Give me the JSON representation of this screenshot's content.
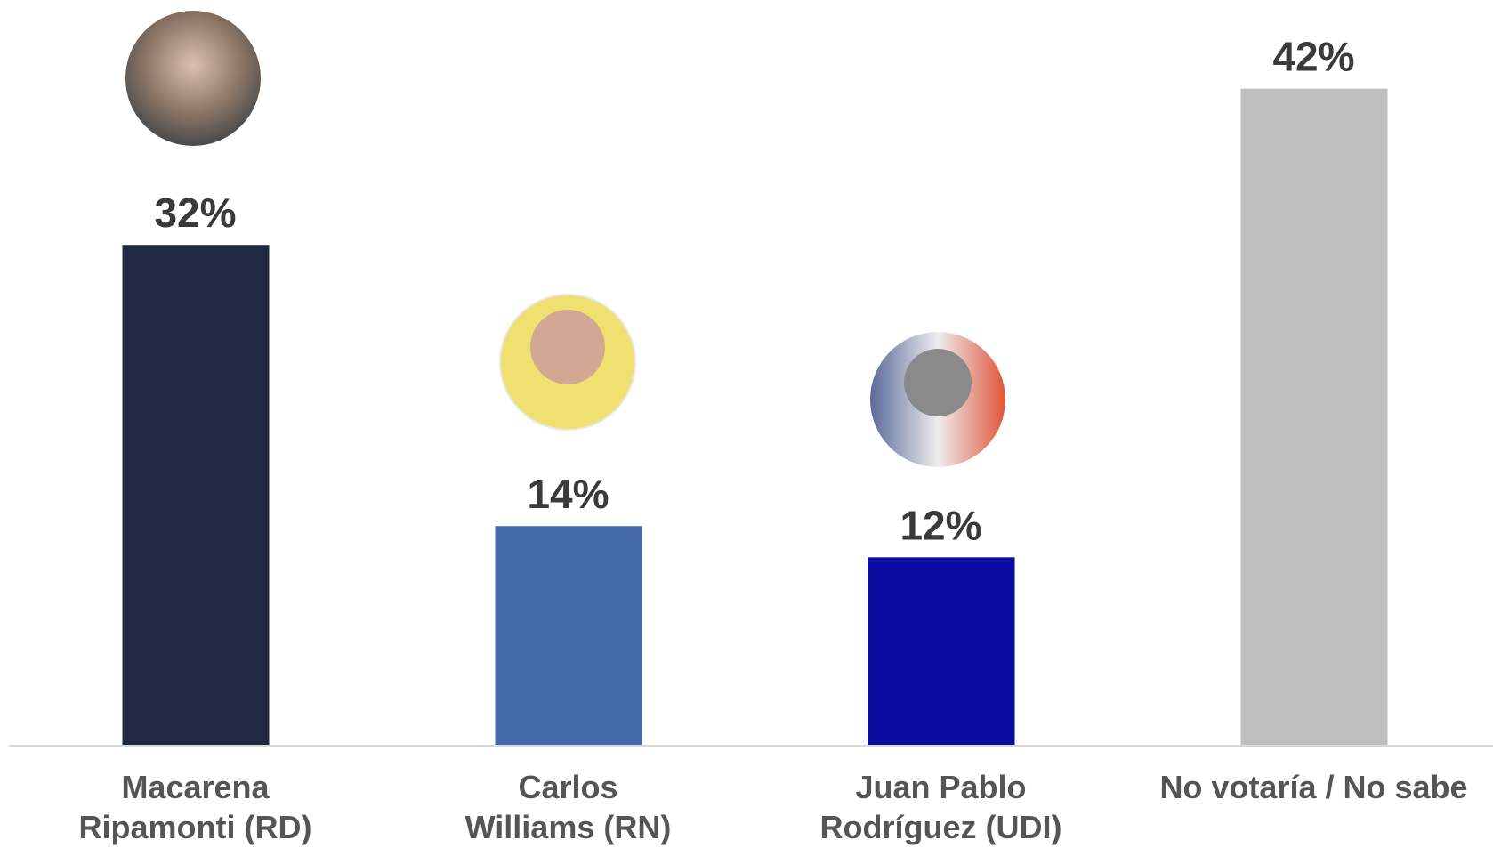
{
  "chart_data": {
    "type": "bar",
    "categories": [
      "Macarena\nRipamonti (RD)",
      "Carlos\nWilliams (RN)",
      "Juan Pablo\nRodríguez (UDI)",
      "No votaría / No sabe"
    ],
    "values": [
      32,
      14,
      12,
      42
    ],
    "value_labels": [
      "32%",
      "14%",
      "12%",
      "42%"
    ],
    "colors": [
      "#222a42",
      "#456baa",
      "#0a0d9e",
      "#bfbfbf"
    ],
    "ylim": [
      0,
      45
    ]
  }
}
